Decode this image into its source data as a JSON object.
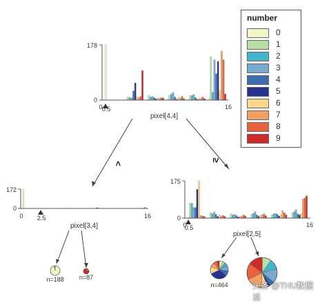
{
  "legend": {
    "title": "number",
    "labels": [
      "0",
      "1",
      "2",
      "3",
      "4",
      "5",
      "6",
      "7",
      "8",
      "9"
    ],
    "colors": [
      "#f2f6c8",
      "#b8dfa5",
      "#45b6c9",
      "#78a9d1",
      "#3d6cb0",
      "#25338f",
      "#fbd68d",
      "#f4a063",
      "#e8623f",
      "#cf2a2a"
    ]
  },
  "nodes": {
    "root": {
      "label": "pixel[4,4]",
      "split": "0.5",
      "x_min": "0",
      "x_max": "16",
      "y_max": "178",
      "y_zero": "0",
      "groups": [
        [
          178,
          0,
          0,
          0,
          0,
          0,
          0,
          0,
          0,
          0
        ],
        [
          3,
          10,
          8,
          7,
          30,
          55,
          10,
          8,
          12,
          95
        ],
        [
          0,
          15,
          10,
          12,
          8,
          4,
          6,
          5,
          8,
          7
        ],
        [
          3,
          15,
          20,
          25,
          10,
          3,
          8,
          6,
          12,
          5
        ],
        [
          2,
          14,
          15,
          18,
          8,
          3,
          6,
          5,
          10,
          5
        ],
        [
          5,
          140,
          25,
          130,
          85,
          125,
          30,
          158,
          130,
          20
        ]
      ]
    },
    "left": {
      "label": "pixel[3,4]",
      "split": "2.5",
      "x_min": "0",
      "x_max": "16",
      "y_max": "172",
      "y_zero": "0",
      "groups": [
        [
          172,
          0,
          0,
          0,
          0,
          0,
          0,
          0,
          0,
          0
        ],
        [
          3,
          0,
          0,
          0,
          0,
          0,
          0,
          0,
          0,
          0
        ],
        [
          0,
          0,
          0,
          0,
          0,
          0,
          0,
          0,
          2,
          3
        ],
        [
          0,
          0,
          0,
          0,
          0,
          0,
          0,
          0,
          0,
          2
        ],
        [
          0,
          0,
          0,
          0,
          0,
          0,
          0,
          0,
          6,
          8
        ],
        [
          0,
          0,
          0,
          0,
          0,
          0,
          0,
          0,
          2,
          3
        ],
        [
          0,
          0,
          0,
          0,
          0,
          0,
          0,
          0,
          0,
          2
        ],
        [
          0,
          0,
          0,
          0,
          0,
          0,
          0,
          3,
          4,
          10
        ]
      ]
    },
    "right": {
      "label": "pixel[2,5]",
      "split": "0.5",
      "x_min": "0",
      "x_max": "16",
      "y_max": "175",
      "y_zero": "0",
      "groups": [
        [
          3,
          70,
          70,
          50,
          50,
          135,
          175,
          12,
          10,
          8
        ],
        [
          0,
          25,
          20,
          28,
          18,
          8,
          15,
          10,
          12,
          8
        ],
        [
          0,
          20,
          15,
          18,
          12,
          6,
          10,
          8,
          15,
          10
        ],
        [
          0,
          18,
          22,
          30,
          15,
          8,
          12,
          15,
          20,
          12
        ],
        [
          0,
          15,
          20,
          22,
          18,
          10,
          15,
          35,
          25,
          15
        ],
        [
          0,
          25,
          30,
          40,
          20,
          15,
          20,
          90,
          95,
          105
        ]
      ]
    },
    "leaf_a": {
      "label": "n=188",
      "values": [
        182,
        0,
        0,
        0,
        0,
        0,
        0,
        0,
        3,
        3
      ]
    },
    "leaf_b": {
      "label": "n=87",
      "values": [
        0,
        0,
        0,
        0,
        0,
        0,
        0,
        4,
        15,
        68
      ]
    },
    "leaf_c": {
      "label": "n=464",
      "values": [
        30,
        20,
        30,
        45,
        45,
        145,
        60,
        40,
        30,
        19
      ]
    },
    "leaf_d": {
      "label": "",
      "values": [
        2,
        38,
        45,
        60,
        20,
        12,
        28,
        68,
        70,
        60
      ]
    }
  },
  "edges": {
    "left_label": "<",
    "right_label": "≥"
  },
  "watermark": "头条 @THU数据派"
}
